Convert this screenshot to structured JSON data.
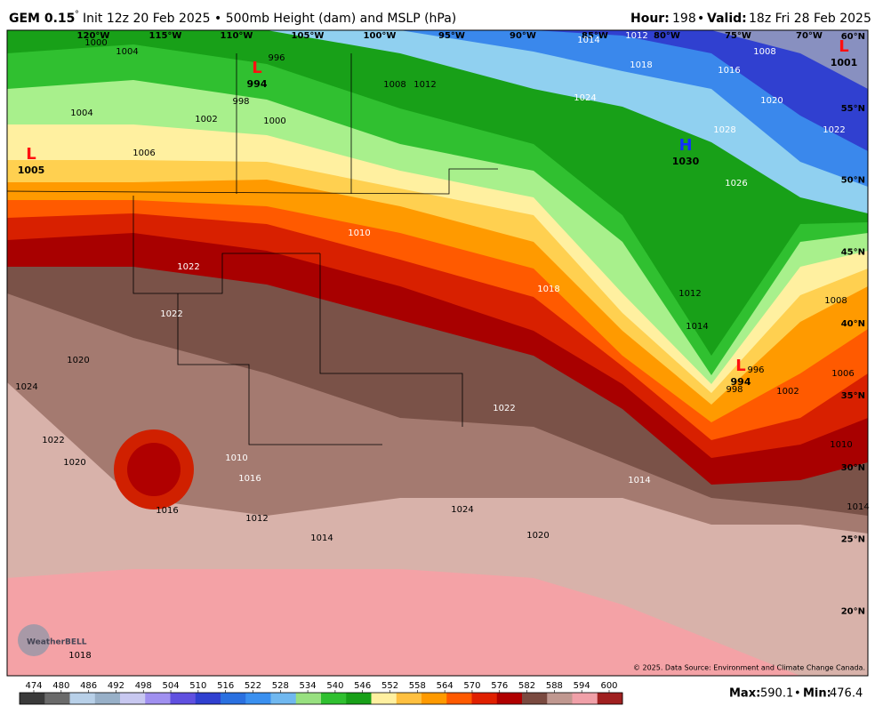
{
  "header": {
    "model": "GEM 0.15",
    "degree": "°",
    "init": "Init 12z 20 Feb 2025 • 500mb Height (dam) and MSLP (hPa)",
    "hour_label": "Hour:",
    "hour": "198",
    "sep": "•",
    "valid_label": "Valid:",
    "valid": "18z Fri 28 Feb 2025"
  },
  "map": {
    "longitudes": [
      "120°W",
      "115°W",
      "110°W",
      "105°W",
      "100°W",
      "95°W",
      "90°W",
      "85°W",
      "80°W",
      "75°W",
      "70°W"
    ],
    "latitudes": [
      "60°N",
      "55°N",
      "50°N",
      "45°N",
      "40°N",
      "35°N",
      "30°N",
      "25°N",
      "20°N"
    ],
    "centers": [
      {
        "type": "L",
        "value": 994
      },
      {
        "type": "L",
        "value": 1005
      },
      {
        "type": "H",
        "value": 1030
      },
      {
        "type": "L",
        "value": 994
      },
      {
        "type": "L",
        "value": 1001
      }
    ],
    "isobar_labels": [
      1004,
      1000,
      996,
      998,
      1000,
      1002,
      1004,
      1006,
      1008,
      1012,
      1014,
      1012,
      1018,
      1016,
      1020,
      1024,
      1028,
      1022,
      1026,
      1008,
      1010,
      1022,
      1022,
      1020,
      1024,
      1022,
      1020,
      1018,
      1012,
      1014,
      1008,
      996,
      998,
      1002,
      1006,
      1010,
      1014,
      1022,
      1014,
      1010,
      1016,
      1016,
      1012,
      1014,
      1024,
      1020,
      1018
    ],
    "logo": "WeatherBELL",
    "copyright": "© 2025. Data Source: Environment and Climate Change Canada."
  },
  "colorbar": {
    "ticks": [
      474,
      480,
      486,
      492,
      498,
      504,
      510,
      516,
      522,
      528,
      534,
      540,
      546,
      552,
      558,
      564,
      570,
      576,
      582,
      588,
      594,
      600
    ],
    "colors": [
      "#3a3a3a",
      "#6a6a6a",
      "#b8d0e8",
      "#98b0c8",
      "#c8c8f0",
      "#a090f0",
      "#6050e0",
      "#3040d0",
      "#2a70e0",
      "#3a90f0",
      "#70b8f0",
      "#98e080",
      "#30c030",
      "#18a018",
      "#fff0a0",
      "#ffc040",
      "#ff9a00",
      "#ff5a00",
      "#e02000",
      "#b00000",
      "#7a4a40",
      "#c09890",
      "#f0a0a8",
      "#a02020"
    ]
  },
  "footer": {
    "max_label": "Max:",
    "max": 590.1,
    "sep": "•",
    "min_label": "Min:",
    "min": 476.4
  }
}
